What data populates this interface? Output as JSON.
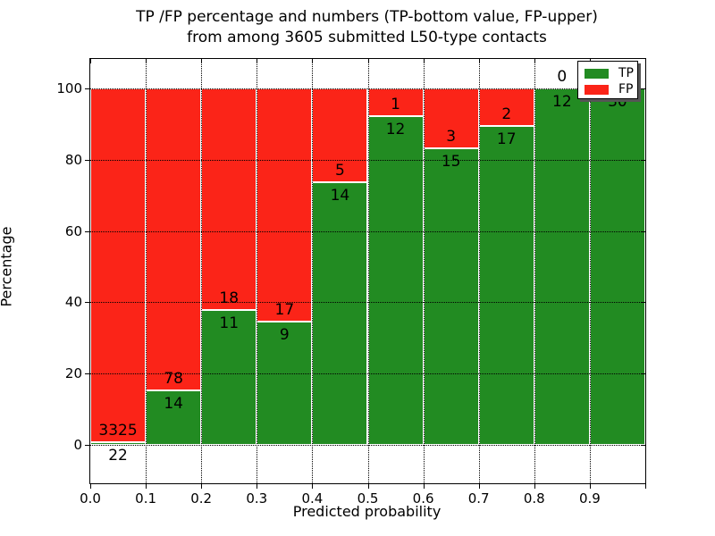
{
  "title": {
    "line1": "TP /FP percentage and numbers (TP-bottom value, FP-upper)",
    "line2": "from among 3605 submitted L50-type contacts"
  },
  "axes": {
    "xlabel": "Predicted probability",
    "ylabel": "Percentage",
    "xticks": [
      "0.0",
      "0.1",
      "0.2",
      "0.3",
      "0.4",
      "0.5",
      "0.6",
      "0.7",
      "0.8",
      "0.9"
    ],
    "yticks": [
      0,
      20,
      40,
      60,
      80,
      100
    ]
  },
  "colors": {
    "tp": "#228b22",
    "fp": "#fb2418",
    "grid": "#000000",
    "bar_edge": "#ffffff"
  },
  "legend": {
    "items": [
      {
        "label": "TP",
        "color": "#228b22"
      },
      {
        "label": "FP",
        "color": "#fb2418"
      }
    ],
    "position": "upper right"
  },
  "chart_data": {
    "type": "bar",
    "stacked": true,
    "normalized_to_percent": true,
    "title": "TP /FP percentage and numbers (TP-bottom value, FP-upper) from among 3605 submitted L50-type contacts",
    "xlabel": "Predicted probability",
    "ylabel": "Percentage",
    "total_contacts": 3605,
    "bin_width": 0.1,
    "categories": [
      "0.0-0.1",
      "0.1-0.2",
      "0.2-0.3",
      "0.3-0.4",
      "0.4-0.5",
      "0.5-0.6",
      "0.6-0.7",
      "0.7-0.8",
      "0.8-0.9",
      "0.9-1.0"
    ],
    "series": [
      {
        "name": "TP",
        "color": "#228b22",
        "counts": [
          22,
          14,
          11,
          9,
          14,
          12,
          15,
          17,
          12,
          30
        ]
      },
      {
        "name": "FP",
        "color": "#fb2418",
        "counts": [
          3325,
          78,
          18,
          17,
          5,
          1,
          3,
          2,
          0,
          0
        ]
      }
    ],
    "tp_percent_per_bin": [
      0.66,
      15.22,
      37.93,
      34.62,
      73.68,
      92.31,
      83.33,
      89.47,
      100,
      100
    ],
    "xlim": [
      0,
      1
    ],
    "ylim": [
      -11,
      108.5
    ],
    "grid": "dotted, both axes, drawn above bars",
    "legend_position": "upper right",
    "note": "Each bin stacked to 100%; TP count printed below the TP/FP boundary, FP count above it"
  }
}
